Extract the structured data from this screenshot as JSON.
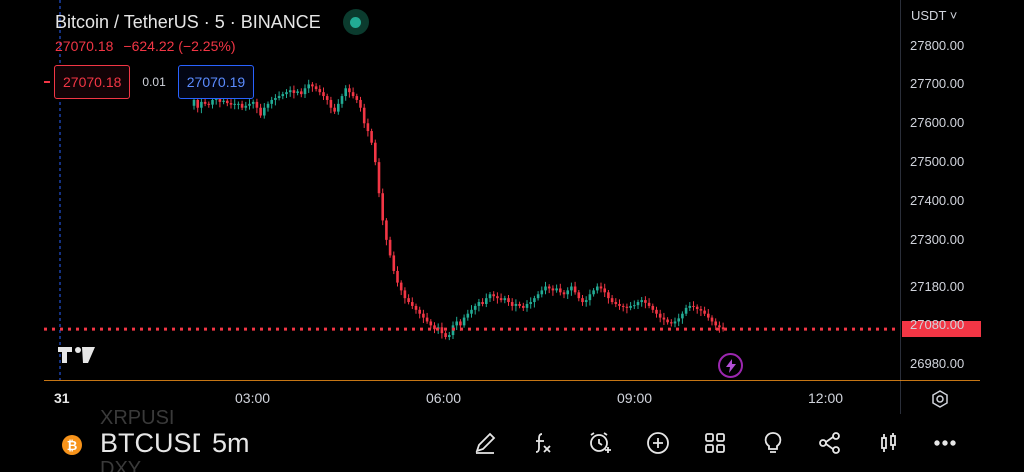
{
  "header": {
    "symbol_title": "Bitcoin / TetherUS · 5 · BINANCE",
    "last_price": "27070.18",
    "change": "−624.22 (−2.25%)"
  },
  "quote": {
    "bid": "27070.18",
    "spread": "0.01",
    "ask": "27070.19"
  },
  "price_axis": {
    "currency": "USDT",
    "ticks": [
      "27800.00",
      "27700.00",
      "27600.00",
      "27500.00",
      "27400.00",
      "27300.00",
      "27180.00",
      "27080.00",
      "26980.00"
    ]
  },
  "time_axis": {
    "ticks": [
      "31",
      "03:00",
      "06:00",
      "09:00",
      "12:00"
    ]
  },
  "bottom_bar": {
    "coin_letter": "₿",
    "ghost_above": "XRPUSI",
    "ticker": "BTCUSDT",
    "ghost_below": "DXY",
    "interval": "5m",
    "tools": [
      "draw-icon",
      "indicators-icon",
      "alert-icon",
      "add-icon",
      "layouts-icon",
      "ideas-icon",
      "share-icon",
      "chart-type-icon",
      "more-icon"
    ]
  },
  "colors": {
    "up": "#22ab94",
    "down": "#f23645",
    "accent": "#f7931a",
    "ask": "#2962ff"
  },
  "chart_data": {
    "type": "candlestick",
    "current_price": 27070.18,
    "ylim": [
      26960,
      27840
    ],
    "x_ticks": [
      "31",
      "03:00",
      "06:00",
      "09:00",
      "12:00"
    ],
    "close": [
      27660,
      27640,
      27655,
      27650,
      27648,
      27660,
      27665,
      27655,
      27658,
      27652,
      27648,
      27650,
      27650,
      27640,
      27645,
      27650,
      27655,
      27640,
      27620,
      27640,
      27650,
      27660,
      27665,
      27670,
      27675,
      27680,
      27685,
      27678,
      27682,
      27675,
      27690,
      27700,
      27695,
      27688,
      27680,
      27670,
      27660,
      27640,
      27630,
      27650,
      27670,
      27690,
      27680,
      27670,
      27660,
      27640,
      27600,
      27580,
      27550,
      27500,
      27420,
      27350,
      27300,
      27260,
      27220,
      27190,
      27170,
      27150,
      27140,
      27130,
      27120,
      27110,
      27100,
      27090,
      27080,
      27070,
      27075,
      27060,
      27050,
      27055,
      27080,
      27090,
      27080,
      27100,
      27110,
      27120,
      27130,
      27140,
      27135,
      27150,
      27160,
      27155,
      27150,
      27145,
      27150,
      27140,
      27130,
      27135,
      27130,
      27125,
      27135,
      27140,
      27150,
      27160,
      27170,
      27180,
      27175,
      27170,
      27175,
      27165,
      27160,
      27170,
      27180,
      27165,
      27150,
      27140,
      27145,
      27160,
      27170,
      27180,
      27175,
      27165,
      27150,
      27140,
      27135,
      27130,
      27128,
      27125,
      27130,
      27132,
      27140,
      27145,
      27138,
      27130,
      27120,
      27110,
      27100,
      27095,
      27088,
      27085,
      27090,
      27098,
      27110,
      27125,
      27130,
      27128,
      27122,
      27118,
      27110,
      27100,
      27090,
      27080,
      27075,
      27070
    ]
  }
}
